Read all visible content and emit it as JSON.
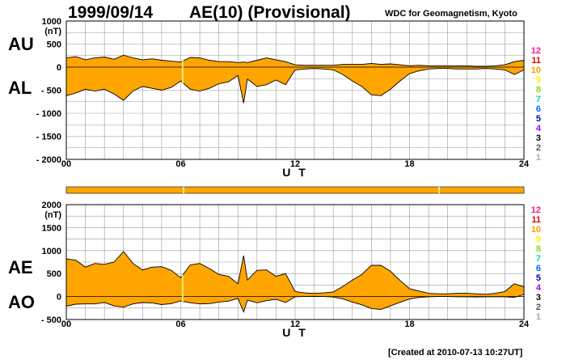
{
  "header": {
    "date": "1999/09/14",
    "title": "AE(10) (Provisional)",
    "source": "WDC for Geomagnetism, Kyoto"
  },
  "footer": {
    "created": "[Created at 2010-07-13 10:27UT]"
  },
  "colors": {
    "fill": "#ffa500",
    "grid": "#9a9a9a",
    "line": "#000000",
    "highlight": "#f0e878",
    "station_scale": [
      "#ff1493",
      "#e60000",
      "#ff9900",
      "#ffee00",
      "#88dd00",
      "#00d0d0",
      "#0066ff",
      "#0000aa",
      "#aa00ff",
      "#000000",
      "#555555",
      "#aaaaaa"
    ]
  },
  "station_scale_labels": [
    "12",
    "11",
    "10",
    "9",
    "8",
    "7",
    "6",
    "5",
    "4",
    "3",
    "2",
    "1"
  ],
  "chart_data": [
    {
      "name": "AU/AL panel",
      "type": "area",
      "unit": "(nT)",
      "left_labels": [
        "AU",
        "AL"
      ],
      "xlabel": "U T",
      "xlim": [
        0,
        24
      ],
      "xticks": [
        "00",
        "06",
        "12",
        "18",
        "24"
      ],
      "ylim": [
        -2000,
        1000
      ],
      "yticks": [
        "1000",
        "500",
        "0",
        "- 500",
        "- 1000",
        "- 1500",
        "- 2000"
      ],
      "ytick_values": [
        1000,
        500,
        0,
        -500,
        -1000,
        -1500,
        -2000
      ],
      "grid": true,
      "x": [
        0,
        0.5,
        1,
        1.5,
        2,
        2.5,
        3,
        3.5,
        4,
        4.5,
        5,
        5.5,
        6,
        6.5,
        7,
        7.5,
        8,
        8.5,
        9,
        9.3,
        9.5,
        10,
        10.5,
        11,
        11.5,
        12,
        12.5,
        13,
        13.5,
        14,
        14.5,
        15,
        15.5,
        16,
        16.5,
        17,
        17.5,
        18,
        18.5,
        19,
        19.5,
        20,
        20.5,
        21,
        21.5,
        22,
        22.5,
        23,
        23.5,
        24
      ],
      "series": [
        {
          "name": "AU",
          "values": [
            200,
            230,
            160,
            200,
            220,
            170,
            260,
            200,
            160,
            180,
            150,
            130,
            110,
            210,
            200,
            150,
            120,
            120,
            100,
            110,
            100,
            150,
            200,
            160,
            120,
            50,
            40,
            40,
            40,
            40,
            60,
            60,
            60,
            80,
            60,
            70,
            50,
            30,
            40,
            30,
            30,
            30,
            30,
            30,
            20,
            20,
            30,
            50,
            120,
            150
          ]
        },
        {
          "name": "AL",
          "values": [
            -620,
            -560,
            -480,
            -520,
            -480,
            -580,
            -720,
            -520,
            -420,
            -460,
            -500,
            -440,
            -300,
            -480,
            -520,
            -460,
            -360,
            -320,
            -180,
            -780,
            -260,
            -420,
            -380,
            -280,
            -380,
            -60,
            -40,
            -30,
            -40,
            -60,
            -160,
            -300,
            -420,
            -600,
            -620,
            -480,
            -300,
            -140,
            -80,
            -40,
            -30,
            -30,
            -40,
            -40,
            -40,
            -30,
            -40,
            -60,
            -160,
            -60
          ]
        }
      ]
    },
    {
      "name": "AE/AO panel",
      "type": "area",
      "unit": "(nT)",
      "left_labels": [
        "AE",
        "AO"
      ],
      "xlabel": "U T",
      "xlim": [
        0,
        24
      ],
      "xticks": [
        "00",
        "06",
        "12",
        "18",
        "24"
      ],
      "ylim": [
        -500,
        2000
      ],
      "yticks": [
        "2000",
        "1500",
        "1000",
        "500",
        "0",
        "- 500"
      ],
      "ytick_values": [
        2000,
        1500,
        1000,
        500,
        0,
        -500
      ],
      "grid": true,
      "x": [
        0,
        0.5,
        1,
        1.5,
        2,
        2.5,
        3,
        3.5,
        4,
        4.5,
        5,
        5.5,
        6,
        6.5,
        7,
        7.5,
        8,
        8.5,
        9,
        9.3,
        9.5,
        10,
        10.5,
        11,
        11.5,
        12,
        12.5,
        13,
        13.5,
        14,
        14.5,
        15,
        15.5,
        16,
        16.5,
        17,
        17.5,
        18,
        18.5,
        19,
        19.5,
        20,
        20.5,
        21,
        21.5,
        22,
        22.5,
        23,
        23.5,
        24
      ],
      "series": [
        {
          "name": "AE",
          "values": [
            820,
            790,
            640,
            720,
            700,
            750,
            980,
            720,
            580,
            640,
            650,
            570,
            410,
            690,
            720,
            610,
            480,
            440,
            280,
            890,
            360,
            570,
            580,
            440,
            500,
            110,
            80,
            70,
            80,
            100,
            220,
            360,
            480,
            680,
            680,
            550,
            350,
            170,
            120,
            70,
            60,
            60,
            70,
            70,
            60,
            50,
            70,
            110,
            280,
            210
          ]
        },
        {
          "name": "AO",
          "values": [
            -210,
            -165,
            -160,
            -160,
            -130,
            -205,
            -230,
            -160,
            -130,
            -140,
            -175,
            -155,
            -95,
            -135,
            -160,
            -155,
            -120,
            -100,
            -40,
            -335,
            -80,
            -135,
            -90,
            -60,
            -130,
            -5,
            0,
            5,
            0,
            -10,
            -50,
            -120,
            -180,
            -260,
            -280,
            -205,
            -125,
            -55,
            -20,
            -5,
            0,
            0,
            -5,
            -5,
            -10,
            -5,
            -5,
            -5,
            -20,
            45
          ]
        }
      ]
    }
  ]
}
